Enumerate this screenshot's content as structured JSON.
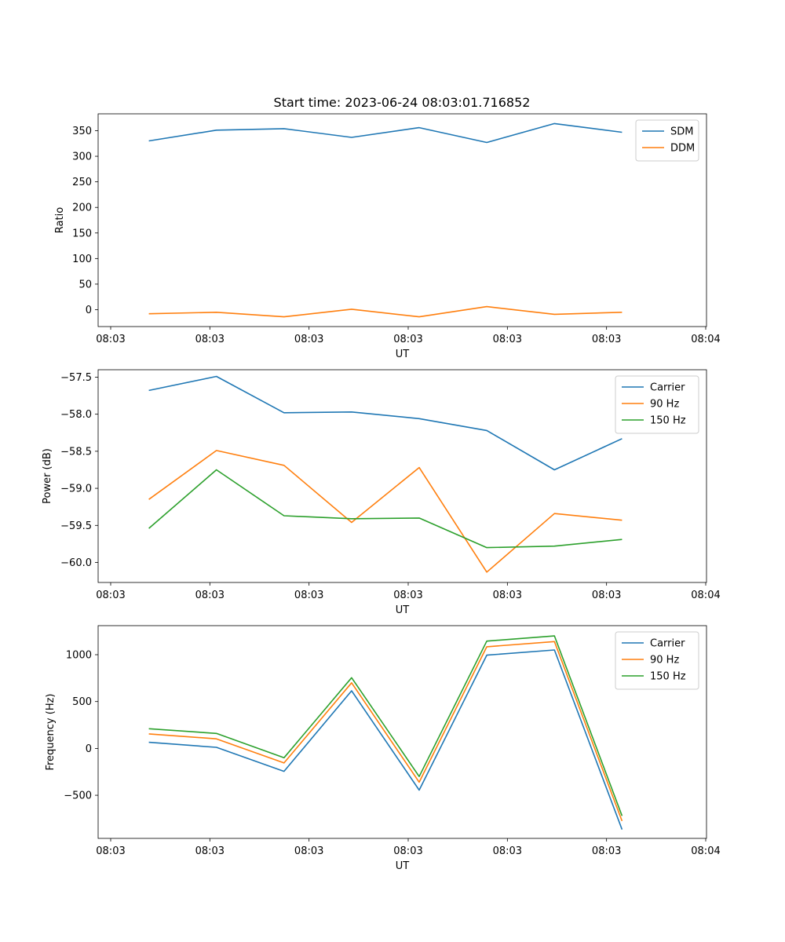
{
  "title": "Start time: 2023-06-24 08:03:01.716852",
  "chart_data": [
    {
      "type": "line",
      "ylabel": "Ratio",
      "xlabel": "UT",
      "x_ticks": [
        "08:03",
        "08:03",
        "08:03",
        "08:03",
        "08:03",
        "08:03",
        "08:04"
      ],
      "xlim": [
        0,
        9
      ],
      "x": [
        0.75,
        1.75,
        2.75,
        3.75,
        4.75,
        5.75,
        6.75,
        7.75
      ],
      "ylim": [
        -33,
        383
      ],
      "y_ticks": [
        0,
        50,
        100,
        150,
        200,
        250,
        300,
        350
      ],
      "legend": "top-right",
      "series": [
        {
          "name": "SDM",
          "color": "#1f77b4",
          "values": [
            330,
            351,
            354,
            337,
            356,
            327,
            364,
            347
          ]
        },
        {
          "name": "DDM",
          "color": "#ff7f0e",
          "values": [
            -8,
            -5,
            -14,
            1,
            -14,
            6,
            -9,
            -5
          ]
        }
      ]
    },
    {
      "type": "line",
      "ylabel": "Power (dB)",
      "xlabel": "UT",
      "x_ticks": [
        "08:03",
        "08:03",
        "08:03",
        "08:03",
        "08:03",
        "08:03",
        "08:04"
      ],
      "xlim": [
        0,
        9
      ],
      "x": [
        0.75,
        1.75,
        2.75,
        3.75,
        4.75,
        5.75,
        6.75,
        7.75
      ],
      "ylim": [
        -60.27,
        -57.4
      ],
      "y_ticks": [
        -60.0,
        -59.5,
        -59.0,
        -58.5,
        -58.0,
        -57.5
      ],
      "legend": "top-right",
      "series": [
        {
          "name": "Carrier",
          "color": "#1f77b4",
          "values": [
            -57.68,
            -57.49,
            -57.98,
            -57.97,
            -58.06,
            -58.22,
            -58.75,
            -58.33
          ]
        },
        {
          "name": "90 Hz",
          "color": "#ff7f0e",
          "values": [
            -59.15,
            -58.49,
            -58.69,
            -59.46,
            -58.72,
            -60.13,
            -59.34,
            -59.43
          ]
        },
        {
          "name": "150 Hz",
          "color": "#2ca02c",
          "values": [
            -59.54,
            -58.75,
            -59.37,
            -59.41,
            -59.4,
            -59.8,
            -59.78,
            -59.69
          ]
        }
      ]
    },
    {
      "type": "line",
      "ylabel": "Frequency (Hz)",
      "xlabel": "UT",
      "x_ticks": [
        "08:03",
        "08:03",
        "08:03",
        "08:03",
        "08:03",
        "08:03",
        "08:04"
      ],
      "xlim": [
        0,
        9
      ],
      "x": [
        0.75,
        1.75,
        2.75,
        3.75,
        4.75,
        5.75,
        6.75,
        7.75
      ],
      "ylim": [
        -960,
        1310
      ],
      "y_ticks": [
        -500,
        0,
        500,
        1000
      ],
      "legend": "top-right",
      "series": [
        {
          "name": "Carrier",
          "color": "#1f77b4",
          "values": [
            65,
            12,
            -245,
            615,
            -445,
            995,
            1050,
            -865
          ]
        },
        {
          "name": "90 Hz",
          "color": "#ff7f0e",
          "values": [
            155,
            102,
            -155,
            700,
            -360,
            1085,
            1140,
            -775
          ]
        },
        {
          "name": "150 Hz",
          "color": "#2ca02c",
          "values": [
            210,
            160,
            -100,
            755,
            -300,
            1145,
            1200,
            -720
          ]
        }
      ]
    }
  ]
}
